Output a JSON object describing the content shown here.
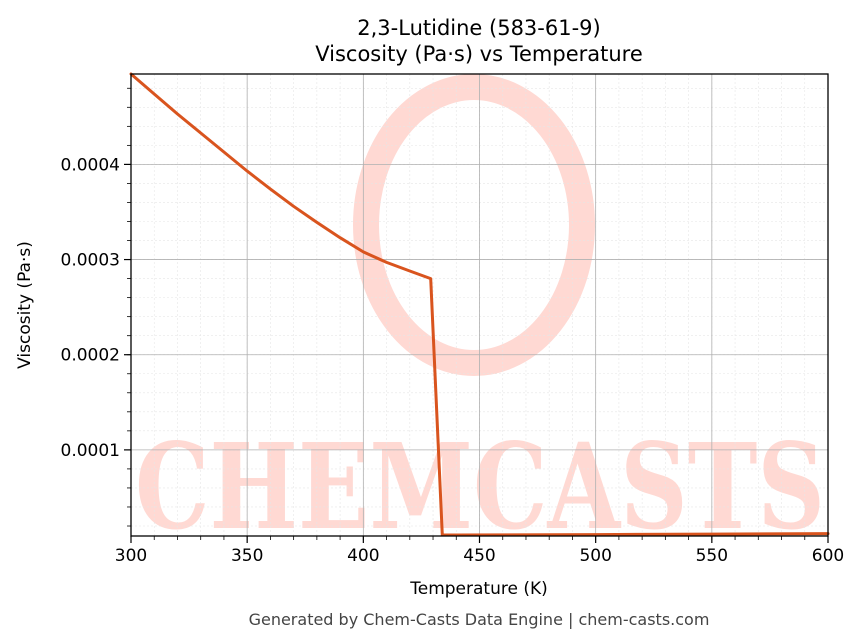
{
  "chart_data": {
    "type": "line",
    "title": "2,3-Lutidine (583-61-9)",
    "subtitle": "Viscosity (Pa·s) vs Temperature",
    "xlabel": "Temperature (K)",
    "ylabel": "Viscosity (Pa·s)",
    "xlim": [
      300,
      600
    ],
    "ylim": [
      9.5e-06,
      0.000495
    ],
    "x_ticks": [
      300,
      350,
      400,
      450,
      500,
      550,
      600
    ],
    "x_tick_labels": [
      "300",
      "350",
      "400",
      "450",
      "500",
      "550",
      "600"
    ],
    "y_ticks": [
      0.0001,
      0.0002,
      0.0003,
      0.0004
    ],
    "y_tick_labels": [
      "0.0001",
      "0.0002",
      "0.0003",
      "0.0004"
    ],
    "grid": true,
    "legend": "none",
    "series": [
      {
        "color": "#d9541e",
        "x": [
          300,
          310,
          320,
          330,
          340,
          350,
          360,
          370,
          380,
          390,
          400,
          410,
          420,
          429,
          434,
          440,
          500,
          550,
          600
        ],
        "y": [
          0.000495,
          0.000474,
          0.000453,
          0.000433,
          0.000413,
          0.000393,
          0.000374,
          0.000356,
          0.000339,
          0.000323,
          0.000308,
          0.000297,
          0.000288,
          0.00028,
          1.05e-05,
          1.05e-05,
          1.1e-05,
          1.15e-05,
          1.2e-05
        ]
      }
    ]
  },
  "watermark": {
    "text": "CHEMCASTS",
    "color": "#ffd9d3"
  },
  "footer": "Generated by Chem-Casts Data Engine | chem-casts.com"
}
